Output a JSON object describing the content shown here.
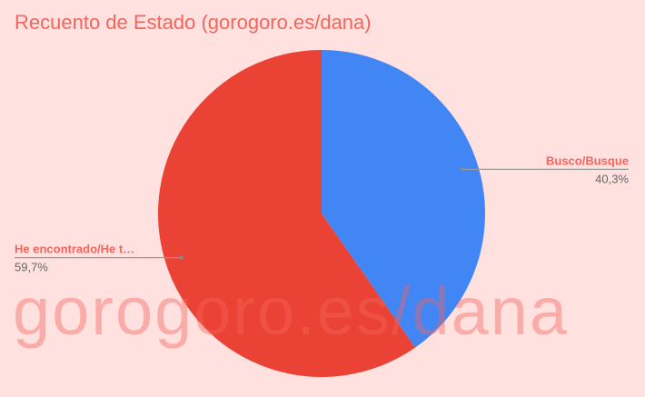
{
  "watermark": "gorogoro.es/dana",
  "chart_data": {
    "type": "pie",
    "title": "Recuento de Estado (gorogoro.es/dana)",
    "slices": [
      {
        "label": "Busco/Busque",
        "value": 40.3,
        "pct_label": "40,3%",
        "color": "#4285f4"
      },
      {
        "label": "He encontrado/He t…",
        "value": 59.7,
        "pct_label": "59,7%",
        "color": "#ea4335"
      }
    ],
    "legend": "inline-labels"
  }
}
